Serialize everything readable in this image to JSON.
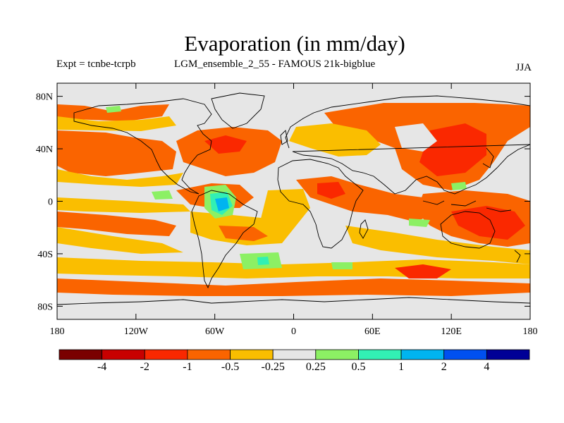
{
  "header": {
    "title": "Evaporation (in mm/day)",
    "experiment": "Expt = tcnbe-tcrpb",
    "run": "LGM_ensemble_2_55 - FAMOUS 21k-bigblue",
    "season": "JJA"
  },
  "map": {
    "lon_ticks": [
      "180",
      "120W",
      "60W",
      "0",
      "60E",
      "120E",
      "180"
    ],
    "lat_ticks": [
      "80N",
      "40N",
      "0",
      "40S",
      "80S"
    ],
    "lon_range": [
      -180,
      180
    ],
    "lat_range": [
      -90,
      90
    ],
    "background_color": "#e6e6e6",
    "coastlines": true
  },
  "colorbar": {
    "labels": [
      "-4",
      "-2",
      "-1",
      "-0.5",
      "-0.25",
      "0.25",
      "0.5",
      "1",
      "2",
      "4"
    ],
    "colors": [
      "#7a0000",
      "#c80000",
      "#fa2800",
      "#fa6400",
      "#fabe00",
      "#e6e6e6",
      "#8cf064",
      "#32f0b4",
      "#00b4f0",
      "#0050f0",
      "#000096"
    ]
  }
}
